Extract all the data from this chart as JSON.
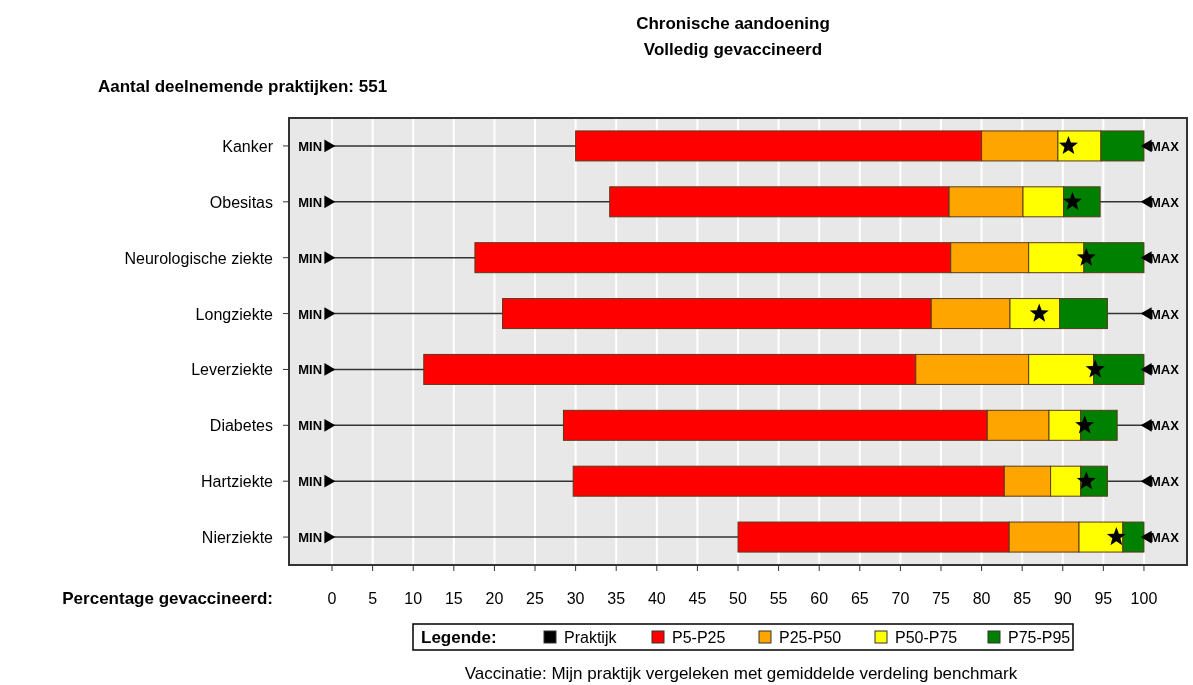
{
  "chart_data": {
    "type": "bar",
    "orientation": "horizontal",
    "title": "Chronische aandoening",
    "subtitle": "Volledig gevaccineerd",
    "xlabel": "Percentage gevaccineerd:",
    "legend_title": "Legende:",
    "legend": "bottom",
    "grid": "x",
    "annotations": [
      "Aantal deelnemende praktijken: 551",
      "Vaccinatie: Mijn praktijk vergeleken met gemiddelde verdeling benchmark"
    ],
    "categories": [
      "Kanker",
      "Obesitas",
      "Neurologische ziekte",
      "Longziekte",
      "Leverziekte",
      "Diabetes",
      "Hartziekte",
      "Nierziekte"
    ],
    "xlim": [
      -5.3,
      105.3
    ],
    "xticks": [
      0,
      5,
      10,
      15,
      20,
      25,
      30,
      35,
      40,
      45,
      50,
      55,
      60,
      65,
      70,
      75,
      80,
      85,
      90,
      95,
      100
    ],
    "series": [
      {
        "type": "scatter",
        "marker": "star",
        "name": "Praktijk",
        "color": "#000000",
        "values": [
          90.7,
          91.2,
          92.9,
          87.1,
          94.0,
          92.7,
          92.9,
          96.6
        ]
      },
      {
        "name": "P5-P25",
        "color": "#ff0000",
        "base": [
          30.0,
          34.2,
          17.6,
          21.0,
          11.3,
          28.5,
          29.7,
          50.0
        ],
        "values": [
          50.0,
          41.8,
          58.6,
          52.8,
          60.6,
          52.2,
          53.1,
          33.4
        ]
      },
      {
        "name": "P25-P50",
        "color": "#ffa500",
        "base": [
          80.0,
          76.0,
          76.2,
          73.8,
          71.9,
          80.7,
          82.8,
          83.4
        ],
        "values": [
          9.4,
          9.1,
          9.6,
          9.7,
          13.9,
          7.6,
          5.7,
          8.6
        ]
      },
      {
        "name": "P50-P75",
        "color": "#ffff00",
        "base": [
          89.4,
          85.1,
          85.8,
          83.5,
          85.8,
          88.3,
          88.5,
          92.0
        ],
        "values": [
          5.3,
          5.0,
          6.8,
          6.1,
          8.0,
          3.9,
          3.7,
          5.4
        ]
      },
      {
        "name": "P75-P95",
        "color": "#008000",
        "base": [
          94.7,
          90.1,
          92.6,
          89.6,
          93.8,
          92.2,
          92.2,
          97.4
        ],
        "values": [
          5.3,
          4.5,
          7.4,
          5.9,
          6.2,
          4.5,
          3.3,
          2.6
        ]
      },
      {
        "type": "scatter",
        "marker": "triangle",
        "color": "#000000",
        "values": [
          0,
          0,
          0,
          0,
          0,
          0,
          0,
          0
        ],
        "value_labels": [
          "MIN",
          "MIN",
          "MIN",
          "MIN",
          "MIN",
          "MIN",
          "MIN",
          "MIN"
        ]
      },
      {
        "type": "scatter",
        "marker": "triangle",
        "color": "#000000",
        "values": [
          100,
          100,
          100,
          100,
          100,
          100,
          100,
          100
        ],
        "value_labels": [
          "MAX",
          "MAX",
          "MAX",
          "MAX",
          "MAX",
          "MAX",
          "MAX",
          "MAX"
        ]
      }
    ]
  }
}
